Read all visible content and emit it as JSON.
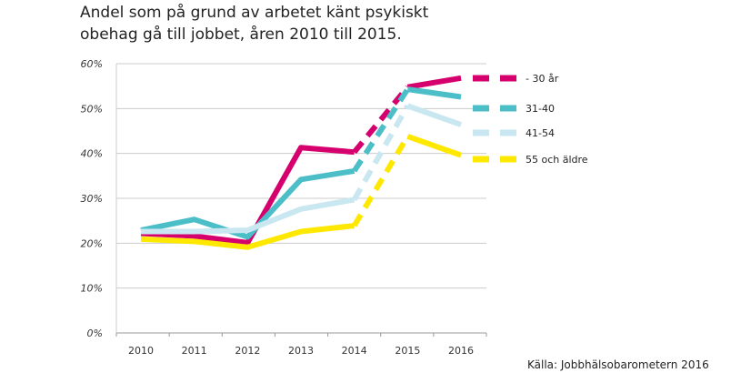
{
  "chart_data": {
    "type": "line",
    "title": "Andel som på grund av arbetet känt psykiskt obehag gå till jobbet, åren 2010 till 2015.",
    "source": "Källa: Jobbhälsobarometern 2016",
    "categories": [
      "2010",
      "2011",
      "2012",
      "2013",
      "2014",
      "2015",
      "2016"
    ],
    "ylim": [
      0,
      60
    ],
    "yticks": [
      "0%",
      "10%",
      "20%",
      "30%",
      "40%",
      "50%",
      "60%"
    ],
    "grid": true,
    "legend_position": "right",
    "dashed_segment": [
      "2014",
      "2015"
    ],
    "series": [
      {
        "name": "- 30 år",
        "color": "#d5006d",
        "values": [
          22.2,
          21.6,
          20.1,
          41.3,
          40.3,
          54.8,
          56.8
        ]
      },
      {
        "name": "31-40",
        "color": "#4cbec8",
        "values": [
          22.9,
          25.3,
          21.4,
          34.2,
          36.1,
          54.3,
          52.6
        ]
      },
      {
        "name": "41-54",
        "color": "#c9e7f0",
        "values": [
          22.6,
          22.6,
          22.9,
          27.6,
          29.7,
          50.6,
          46.4
        ]
      },
      {
        "name": "55 och äldre",
        "color": "#ffe800",
        "values": [
          20.9,
          20.4,
          19.1,
          22.6,
          23.9,
          43.8,
          39.6
        ]
      }
    ]
  }
}
